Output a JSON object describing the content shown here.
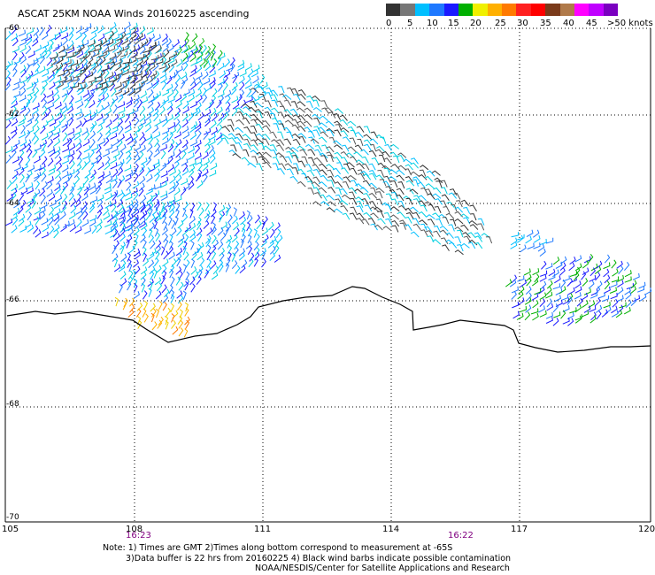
{
  "title": "ASCAT 25KM NOAA Winds 20160225 ascending",
  "colorbar": {
    "colors": [
      "#333333",
      "#777777",
      "#00bfff",
      "#1e78ff",
      "#1a1aff",
      "#00b000",
      "#f0f000",
      "#ffb000",
      "#ff7a00",
      "#ff2020",
      "#ff0000",
      "#7a3a1a",
      "#b07a4a",
      "#ff00ff",
      "#c000ff",
      "#7a00c0"
    ],
    "labels": [
      "0",
      "5",
      "10",
      "15",
      "20",
      "25",
      "30",
      "35",
      "40",
      "45",
      ">50 knots"
    ]
  },
  "axes": {
    "lat_labels": [
      "-60",
      "-62",
      "-64",
      "-66",
      "-68",
      "-70"
    ],
    "lon_labels": [
      "105",
      "108",
      "111",
      "114",
      "117",
      "120"
    ]
  },
  "times": [
    "16:23",
    "16:22"
  ],
  "notes": {
    "line1": "Note: 1) Times are GMT 2)Times along bottom correspond to measurement at -65S",
    "line2": "3)Data buffer is 22 hrs from 20160225 4) Black wind barbs indicate possible contamination",
    "line3": "NOAA/NESDIS/Center for Satellite Applications and Research"
  }
}
